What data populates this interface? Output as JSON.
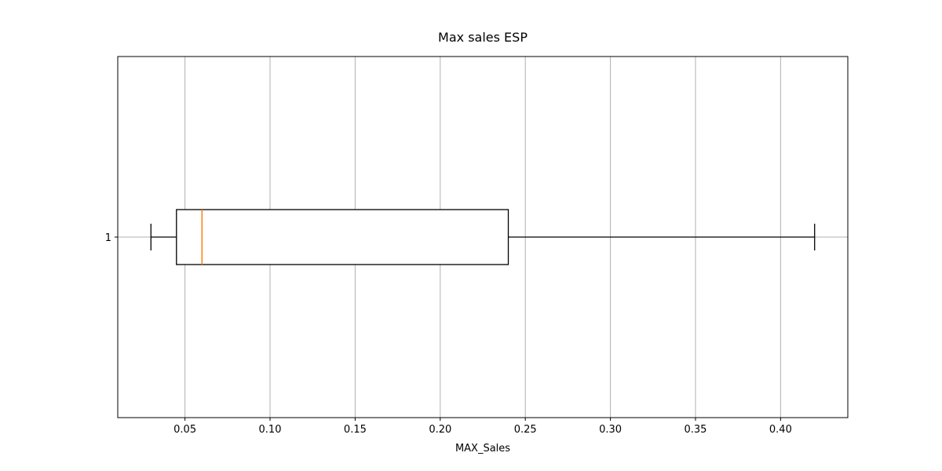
{
  "chart_data": {
    "type": "boxplot",
    "orientation": "horizontal",
    "title": "Max sales ESP",
    "xlabel": "MAX_Sales",
    "ylabel": "",
    "xlim": [
      0.0105,
      0.4395
    ],
    "xticks": [
      0.05,
      0.1,
      0.15,
      0.2,
      0.25,
      0.3,
      0.35,
      0.4
    ],
    "xtick_labels": [
      "0.05",
      "0.10",
      "0.15",
      "0.20",
      "0.25",
      "0.30",
      "0.35",
      "0.40"
    ],
    "yticks": [
      1
    ],
    "ytick_labels": [
      "1"
    ],
    "grid": true,
    "boxes": [
      {
        "position": 1,
        "whisker_low": 0.03,
        "q1": 0.045,
        "median": 0.06,
        "q3": 0.24,
        "whisker_high": 0.42
      }
    ],
    "colors": {
      "box": "#000000",
      "median": "#ff7f0e",
      "grid": "#b0b0b0"
    }
  }
}
